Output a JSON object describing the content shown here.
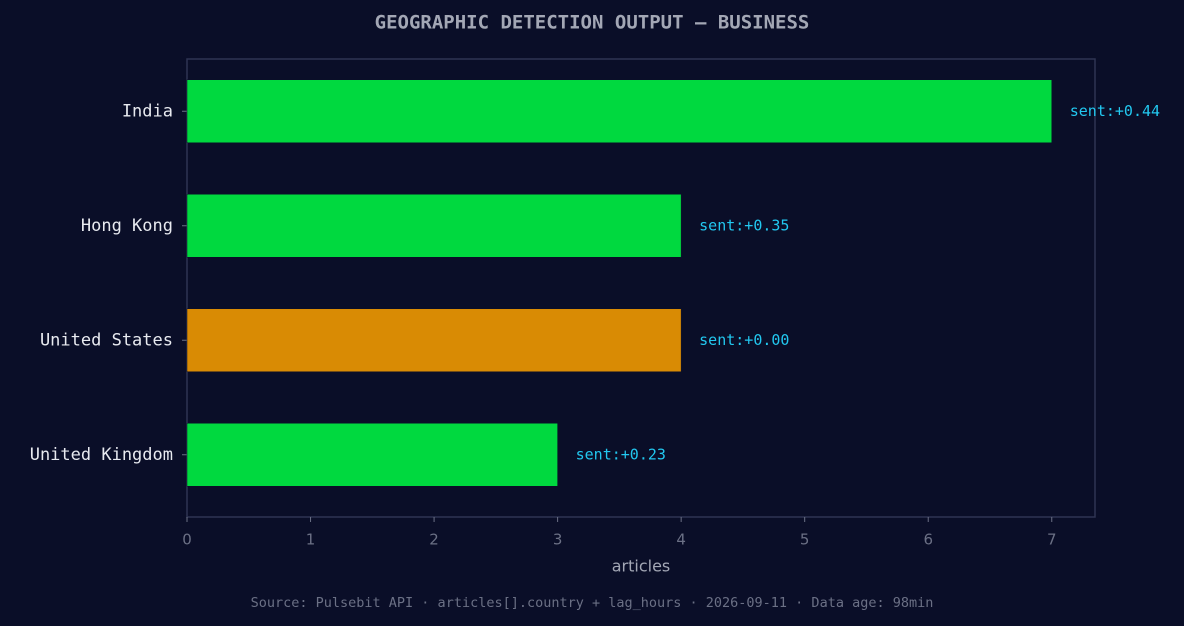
{
  "chart_data": {
    "type": "barh",
    "title": "GEOGRAPHIC DETECTION OUTPUT — BUSINESS",
    "categories": [
      "India",
      "Hong Kong",
      "United States",
      "United Kingdom"
    ],
    "values": [
      7,
      4,
      4,
      3
    ],
    "colors": [
      "#00d93f",
      "#00d93f",
      "#d98b04",
      "#00d93f"
    ],
    "annotations": [
      "sent:+0.44",
      "sent:+0.35",
      "sent:+0.00",
      "sent:+0.23"
    ],
    "xlabel": "articles",
    "xlim": [
      0,
      7.35
    ],
    "xticks": [
      0,
      1,
      2,
      3,
      4,
      5,
      6,
      7
    ],
    "footer": "Source: Pulsebit API · articles[].country + lag_hours · 2026-09-11 · Data age: 98min"
  }
}
